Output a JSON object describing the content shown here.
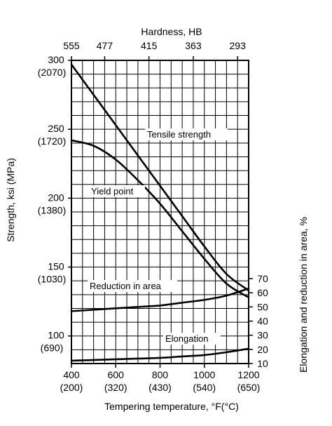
{
  "chart_data": {
    "type": "line",
    "top_axis": {
      "title": "Hardness, HB",
      "ticks": [
        {
          "x": 400,
          "label": "555"
        },
        {
          "x": 550,
          "label": "477"
        },
        {
          "x": 750,
          "label": "415"
        },
        {
          "x": 950,
          "label": "363"
        },
        {
          "x": 1150,
          "label": "293"
        }
      ]
    },
    "x_axis": {
      "title": "Tempering temperature, °F(°C)",
      "range": [
        400,
        1200
      ],
      "ticks": [
        {
          "value": 400,
          "label": "400",
          "sublabel": "(200)"
        },
        {
          "value": 600,
          "label": "600",
          "sublabel": "(320)"
        },
        {
          "value": 800,
          "label": "800",
          "sublabel": "(430)"
        },
        {
          "value": 1000,
          "label": "1000",
          "sublabel": "(540)"
        },
        {
          "value": 1200,
          "label": "1200",
          "sublabel": "(650)"
        }
      ]
    },
    "y_left": {
      "title": "Strength, ksi (MPa)",
      "range": [
        80,
        300
      ],
      "ticks": [
        {
          "value": 300,
          "label": "300",
          "sublabel": "(2070)"
        },
        {
          "value": 250,
          "label": "250",
          "sublabel": "(1720)"
        },
        {
          "value": 200,
          "label": "200",
          "sublabel": "(1380)"
        },
        {
          "value": 150,
          "label": "150",
          "sublabel": "(1030)"
        },
        {
          "value": 100,
          "label": "100",
          "sublabel": "(690)"
        }
      ]
    },
    "y_right": {
      "title": "Elongation and reduction in area, %",
      "ticks": [
        {
          "value": 70,
          "label": "70"
        },
        {
          "value": 60,
          "label": "60"
        },
        {
          "value": 50,
          "label": "50"
        },
        {
          "value": 40,
          "label": "40"
        },
        {
          "value": 30,
          "label": "30"
        },
        {
          "value": 20,
          "label": "20"
        },
        {
          "value": 10,
          "label": "10"
        }
      ]
    },
    "grid": true,
    "series": [
      {
        "name": "Tensile strength",
        "axis": "left",
        "x": [
          400,
          500,
          600,
          700,
          800,
          900,
          1000,
          1100,
          1200
        ],
        "y": [
          297,
          275,
          253,
          231,
          209,
          187,
          165,
          145,
          133
        ]
      },
      {
        "name": "Yield point",
        "axis": "left",
        "x": [
          400,
          500,
          600,
          700,
          800,
          900,
          1000,
          1100,
          1200
        ],
        "y": [
          242,
          238,
          228,
          213,
          196,
          176,
          156,
          138,
          128
        ]
      },
      {
        "name": "Reduction in area",
        "axis": "right",
        "x": [
          400,
          500,
          600,
          700,
          800,
          900,
          1000,
          1100,
          1200
        ],
        "y": [
          47,
          48,
          49,
          50,
          51,
          53,
          55,
          58,
          63
        ]
      },
      {
        "name": "Elongation",
        "axis": "right",
        "x": [
          400,
          500,
          600,
          700,
          800,
          900,
          1000,
          1100,
          1200
        ],
        "y": [
          12,
          12.5,
          13,
          13.5,
          14,
          15,
          16,
          18,
          20.5
        ]
      }
    ]
  }
}
